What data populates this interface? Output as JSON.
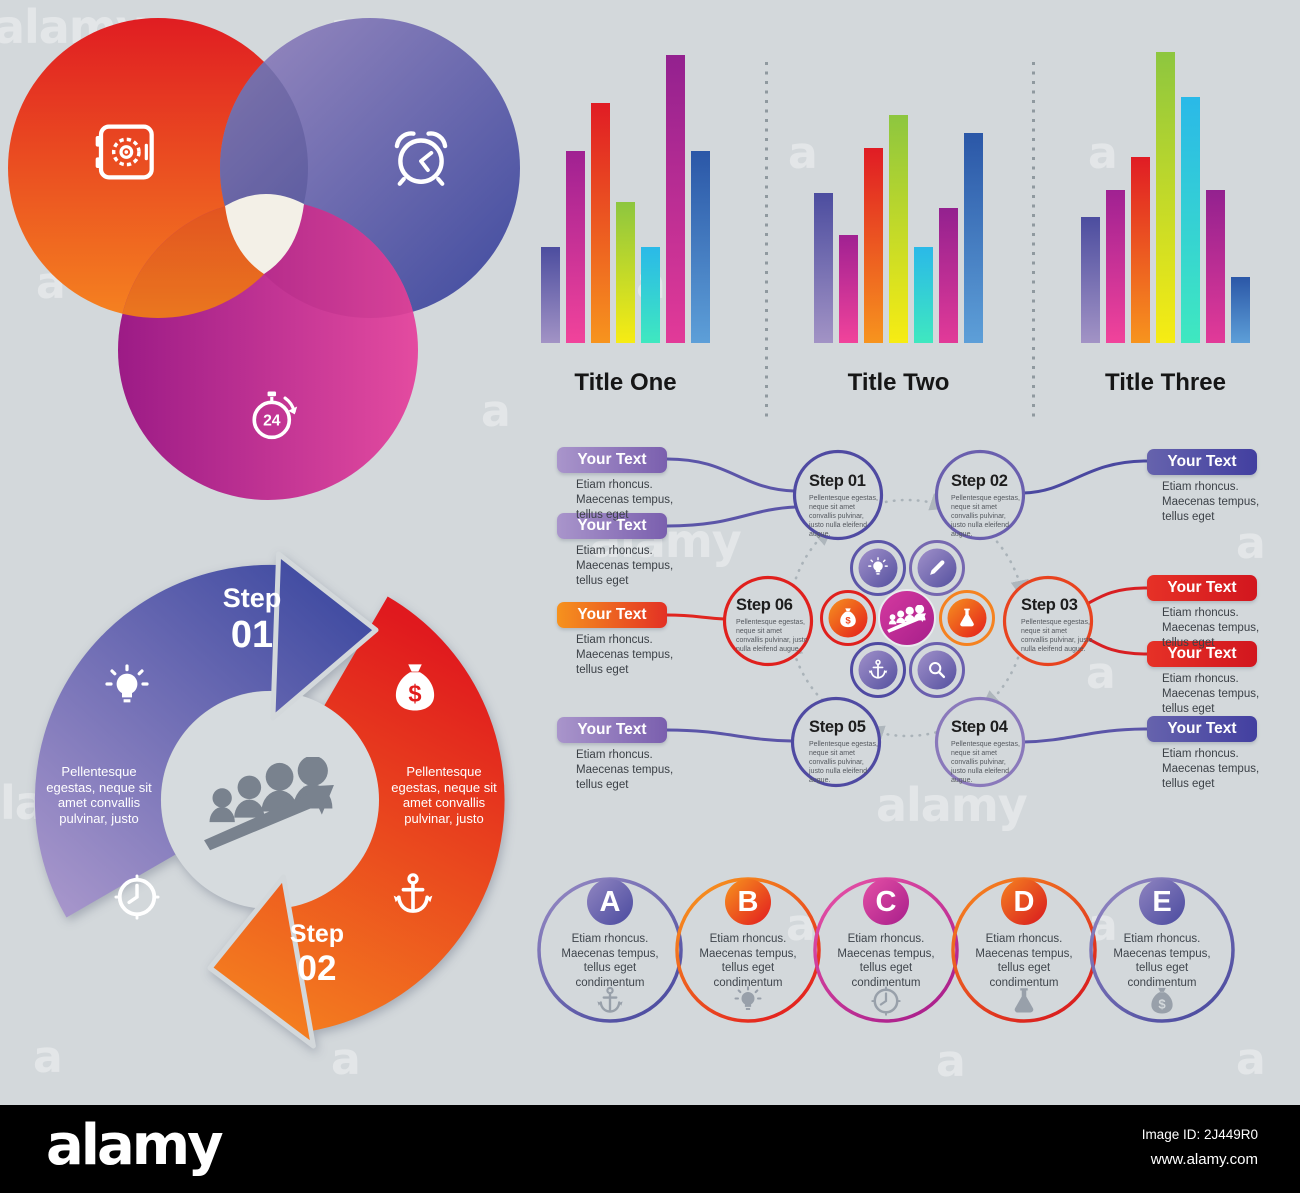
{
  "background": "#d3d8db",
  "watermark": {
    "word": "alamy",
    "letter": "a"
  },
  "footer": {
    "brand": "alamy",
    "image_id": "Image ID: 2J449R0",
    "site": "www.alamy.com"
  },
  "venn": {
    "icons": [
      "safe-icon",
      "alarm-clock-icon",
      "stopwatch-24-icon"
    ],
    "colors": {
      "red": [
        "#e01d22",
        "#f58220"
      ],
      "purple": [
        "#9a8bc0",
        "#3e4a9e"
      ],
      "magenta": [
        "#9c1b86",
        "#e44ba0"
      ],
      "center": "#f3f0e7"
    }
  },
  "charts": {
    "bar_gradients": [
      [
        "#4c4d9f",
        "#a293c5"
      ],
      [
        "#a02192",
        "#f1439b"
      ],
      [
        "#e01c24",
        "#f7941e"
      ],
      [
        "#8dc63f",
        "#f7ec13"
      ],
      [
        "#2ab9e8",
        "#3fe8c0"
      ],
      [
        "#93218f",
        "#e23a98"
      ],
      [
        "#2b57a7",
        "#5d9fd8"
      ]
    ]
  },
  "chart_data": [
    {
      "type": "bar",
      "title": "Title One",
      "values": [
        32,
        64,
        80,
        47,
        32,
        96,
        64
      ],
      "ylim": [
        0,
        100
      ],
      "xlabel": "",
      "ylabel": "",
      "grid": false,
      "legend": false
    },
    {
      "type": "bar",
      "title": "Title Two",
      "values": [
        50,
        36,
        65,
        76,
        32,
        45,
        70
      ],
      "ylim": [
        0,
        100
      ],
      "xlabel": "",
      "ylabel": "",
      "grid": false,
      "legend": false
    },
    {
      "type": "bar",
      "title": "Title Three",
      "values": [
        42,
        51,
        62,
        97,
        82,
        51,
        22
      ],
      "ylim": [
        0,
        100
      ],
      "xlabel": "",
      "ylabel": "",
      "grid": false,
      "legend": false
    }
  ],
  "process": {
    "steps": [
      {
        "label": "Step",
        "num": "01",
        "body": "Pellentesque egestas, neque sit amet convallis pulvinar, justo nulla eleifend augue."
      },
      {
        "label": "Step",
        "num": "02",
        "body": "Pellentesque egestas, neque sit amet convallis pulvinar, justo nulla eleifend augue."
      },
      {
        "label": "Step",
        "num": "03",
        "body": "Pellentesque egestas, neque sit amet convallis pulvinar, justo nulla eleifend augue."
      },
      {
        "label": "Step",
        "num": "04",
        "body": "Pellentesque egestas, neque sit amet convallis pulvinar, justo nulla eleifend augue."
      },
      {
        "label": "Step",
        "num": "05",
        "body": "Pellentesque egestas, neque sit amet convallis pulvinar, justo nulla eleifend augue."
      },
      {
        "label": "Step",
        "num": "06",
        "body": "Pellentesque egestas, neque sit amet convallis pulvinar, justo nulla eleifend augue."
      }
    ],
    "labels": [
      {
        "title": "Your Text",
        "body": "Etiam rhoncus. Maecenas tempus, tellus eget"
      },
      {
        "title": "Your Text",
        "body": "Etiam rhoncus. Maecenas tempus, tellus eget"
      },
      {
        "title": "Your Text",
        "body": "Etiam rhoncus. Maecenas tempus, tellus eget"
      },
      {
        "title": "Your Text",
        "body": "Etiam rhoncus. Maecenas tempus, tellus eget"
      },
      {
        "title": "Your Text",
        "body": "Etiam rhoncus. Maecenas tempus, tellus eget"
      },
      {
        "title": "Your Text",
        "body": "Etiam rhoncus. Maecenas tempus, tellus eget"
      },
      {
        "title": "Your Text",
        "body": "Etiam rhoncus. Maecenas tempus, tellus eget"
      },
      {
        "title": "Your Text",
        "body": "Etiam rhoncus. Maecenas tempus, tellus eget"
      }
    ],
    "icons": [
      "lightbulb-icon",
      "pencil-icon",
      "money-bag-icon",
      "flask-icon",
      "anchor-icon",
      "magnifier-icon",
      "team-growth-icon"
    ]
  },
  "cycle": {
    "steps": [
      {
        "label": "Step",
        "num": "01"
      },
      {
        "label": "Step",
        "num": "02"
      }
    ],
    "left_text": "Pellentesque egestas, neque sit amet convallis pulvinar, justo",
    "right_text": "Pellentesque egestas, neque sit amet convallis pulvinar, justo",
    "icons": [
      "lightbulb-icon",
      "money-bag-icon",
      "clock-icon",
      "anchor-icon",
      "team-growth-icon"
    ]
  },
  "letters": {
    "items": [
      {
        "letter": "A",
        "body": "Etiam rhoncus. Maecenas tempus, tellus eget condimentum",
        "icon": "anchor-icon"
      },
      {
        "letter": "B",
        "body": "Etiam rhoncus. Maecenas tempus, tellus eget condimentum",
        "icon": "lightbulb-icon"
      },
      {
        "letter": "C",
        "body": "Etiam rhoncus. Maecenas tempus, tellus eget condimentum",
        "icon": "clock-icon"
      },
      {
        "letter": "D",
        "body": "Etiam rhoncus. Maecenas tempus, tellus eget condimentum",
        "icon": "flask-icon"
      },
      {
        "letter": "E",
        "body": "Etiam rhoncus. Maecenas tempus, tellus eget condimentum",
        "icon": "money-bag-icon"
      }
    ]
  }
}
